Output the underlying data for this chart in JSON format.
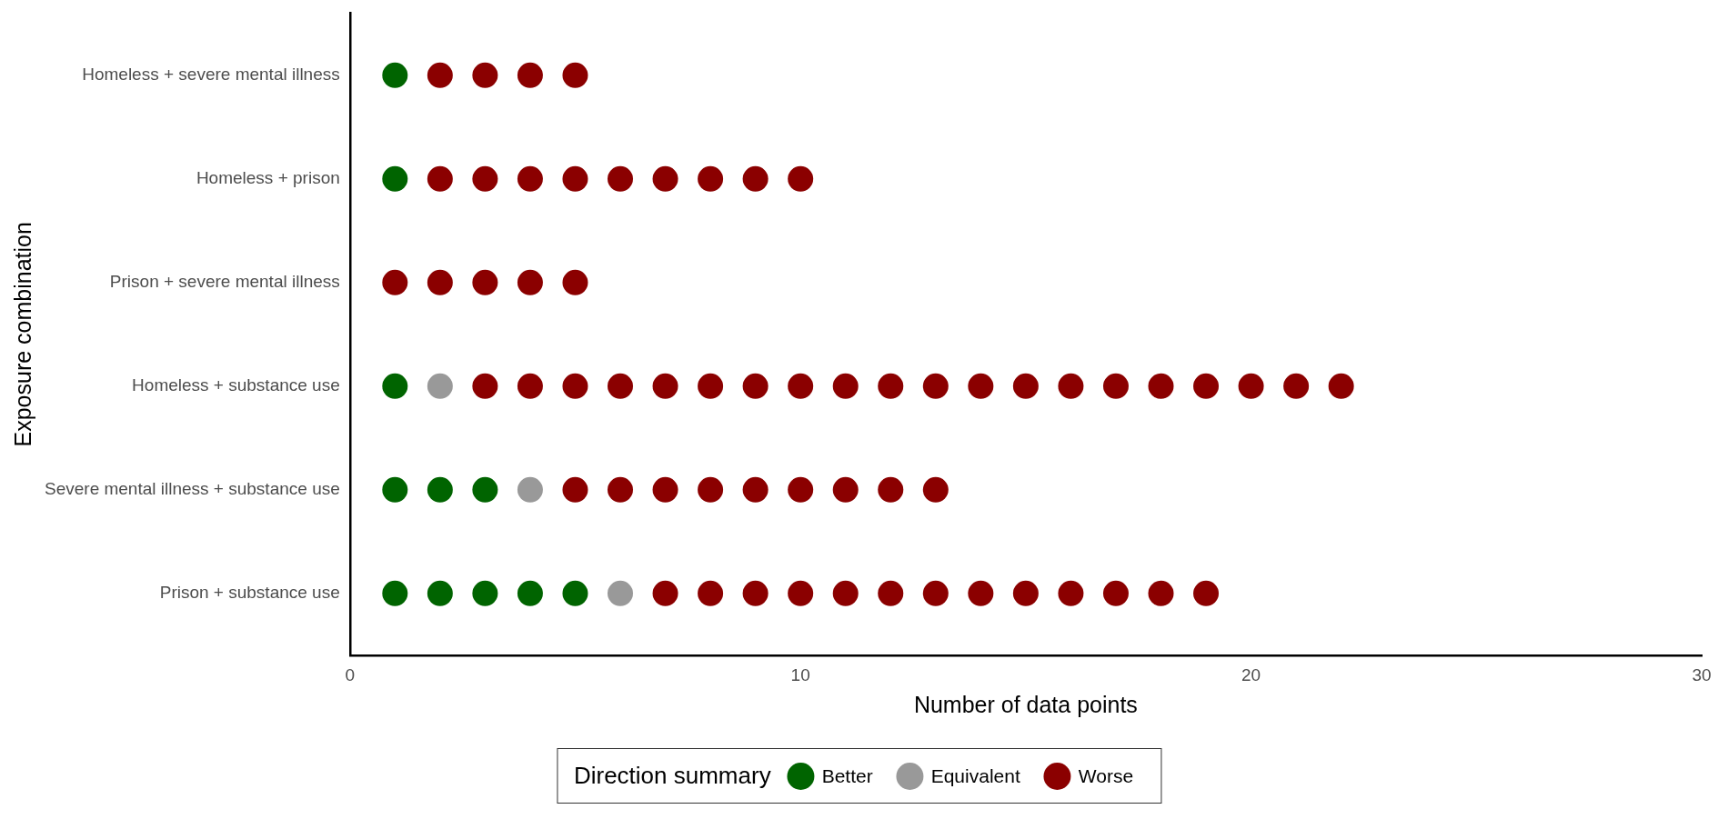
{
  "chart_data": {
    "type": "scatter",
    "orientation": "horizontal",
    "xlabel": "Number of data points",
    "ylabel": "Exposure combination",
    "legend_title": "Direction summary",
    "legend": "bottom",
    "grid": false,
    "marker": "circle",
    "categories": [
      "Homeless + severe mental illness",
      "Homeless + prison",
      "Prison + severe mental illness",
      "Homeless + substance use",
      "Severe mental illness + substance use",
      "Prison + substance use"
    ],
    "xlim": [
      0,
      30
    ],
    "xticks": [
      0,
      10,
      20,
      30
    ],
    "series": [
      {
        "name": "Better",
        "color": "#006400",
        "x": [
          "Homeless + severe mental illness",
          "Homeless + prison",
          "Homeless + substance use",
          "Severe mental illness + substance use",
          "Severe mental illness + substance use",
          "Severe mental illness + substance use",
          "Prison + substance use",
          "Prison + substance use",
          "Prison + substance use",
          "Prison + substance use",
          "Prison + substance use"
        ],
        "values": [
          1,
          1,
          1,
          1,
          2,
          3,
          1,
          2,
          3,
          4,
          5
        ]
      },
      {
        "name": "Equivalent",
        "color": "#999999",
        "x": [
          "Homeless + substance use",
          "Severe mental illness + substance use",
          "Prison + substance use"
        ],
        "values": [
          2,
          4,
          6
        ]
      },
      {
        "name": "Worse",
        "color": "#8b0000",
        "x": [
          "Homeless + severe mental illness",
          "Homeless + severe mental illness",
          "Homeless + severe mental illness",
          "Homeless + severe mental illness",
          "Homeless + prison",
          "Homeless + prison",
          "Homeless + prison",
          "Homeless + prison",
          "Homeless + prison",
          "Homeless + prison",
          "Homeless + prison",
          "Homeless + prison",
          "Homeless + prison",
          "Prison + severe mental illness",
          "Prison + severe mental illness",
          "Prison + severe mental illness",
          "Prison + severe mental illness",
          "Prison + severe mental illness",
          "Homeless + substance use",
          "Homeless + substance use",
          "Homeless + substance use",
          "Homeless + substance use",
          "Homeless + substance use",
          "Homeless + substance use",
          "Homeless + substance use",
          "Homeless + substance use",
          "Homeless + substance use",
          "Homeless + substance use",
          "Homeless + substance use",
          "Homeless + substance use",
          "Homeless + substance use",
          "Homeless + substance use",
          "Homeless + substance use",
          "Homeless + substance use",
          "Homeless + substance use",
          "Homeless + substance use",
          "Homeless + substance use",
          "Homeless + substance use",
          "Severe mental illness + substance use",
          "Severe mental illness + substance use",
          "Severe mental illness + substance use",
          "Severe mental illness + substance use",
          "Severe mental illness + substance use",
          "Severe mental illness + substance use",
          "Severe mental illness + substance use",
          "Severe mental illness + substance use",
          "Severe mental illness + substance use",
          "Prison + substance use",
          "Prison + substance use",
          "Prison + substance use",
          "Prison + substance use",
          "Prison + substance use",
          "Prison + substance use",
          "Prison + substance use",
          "Prison + substance use",
          "Prison + substance use",
          "Prison + substance use",
          "Prison + substance use",
          "Prison + substance use",
          "Prison + substance use"
        ],
        "values": [
          2,
          3,
          4,
          5,
          2,
          3,
          4,
          5,
          6,
          7,
          8,
          9,
          10,
          1,
          2,
          3,
          4,
          5,
          3,
          4,
          5,
          6,
          7,
          8,
          9,
          10,
          11,
          12,
          13,
          14,
          15,
          16,
          17,
          18,
          19,
          20,
          21,
          22,
          5,
          6,
          7,
          8,
          9,
          10,
          11,
          12,
          13,
          7,
          8,
          9,
          10,
          11,
          12,
          13,
          14,
          15,
          16,
          17,
          18,
          19
        ]
      }
    ]
  }
}
